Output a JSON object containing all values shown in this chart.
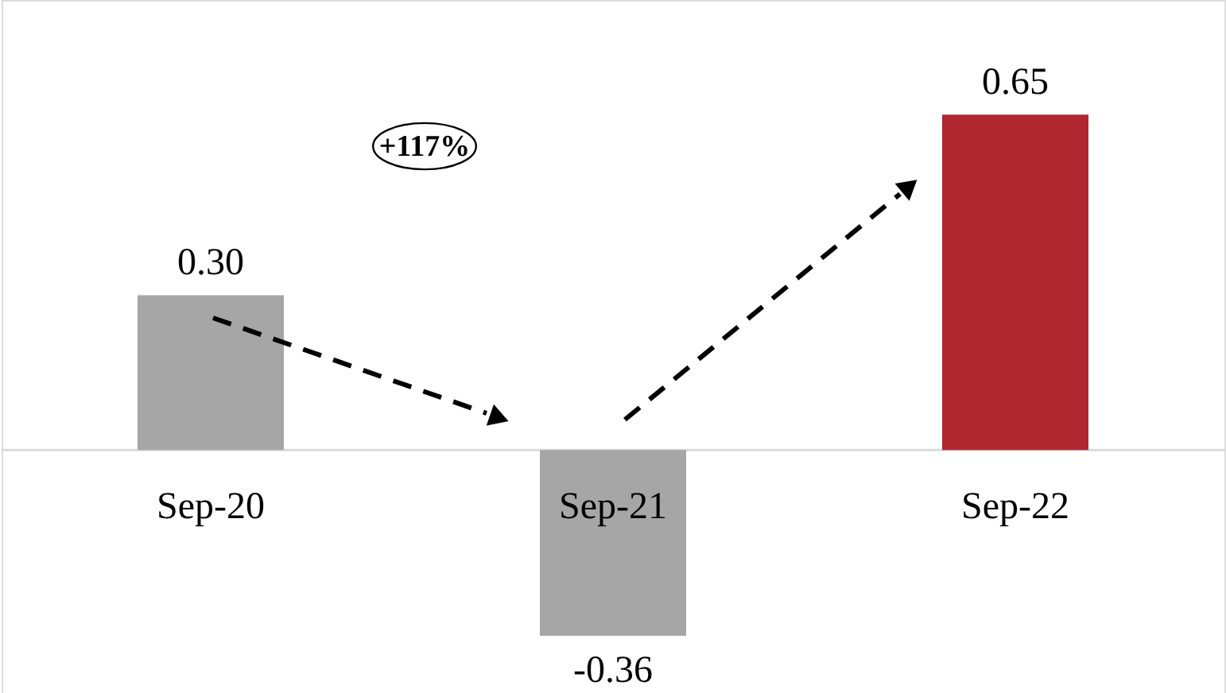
{
  "chart_data": {
    "type": "bar",
    "categories": [
      "Sep-20",
      "Sep-21",
      "Sep-22"
    ],
    "values": [
      0.3,
      -0.36,
      0.65
    ],
    "value_labels": [
      "0.30",
      "-0.36",
      "0.65"
    ],
    "colors": [
      "#a6a6a6",
      "#a6a6a6",
      "#b0272f"
    ],
    "annotations": [
      "+117%"
    ]
  }
}
